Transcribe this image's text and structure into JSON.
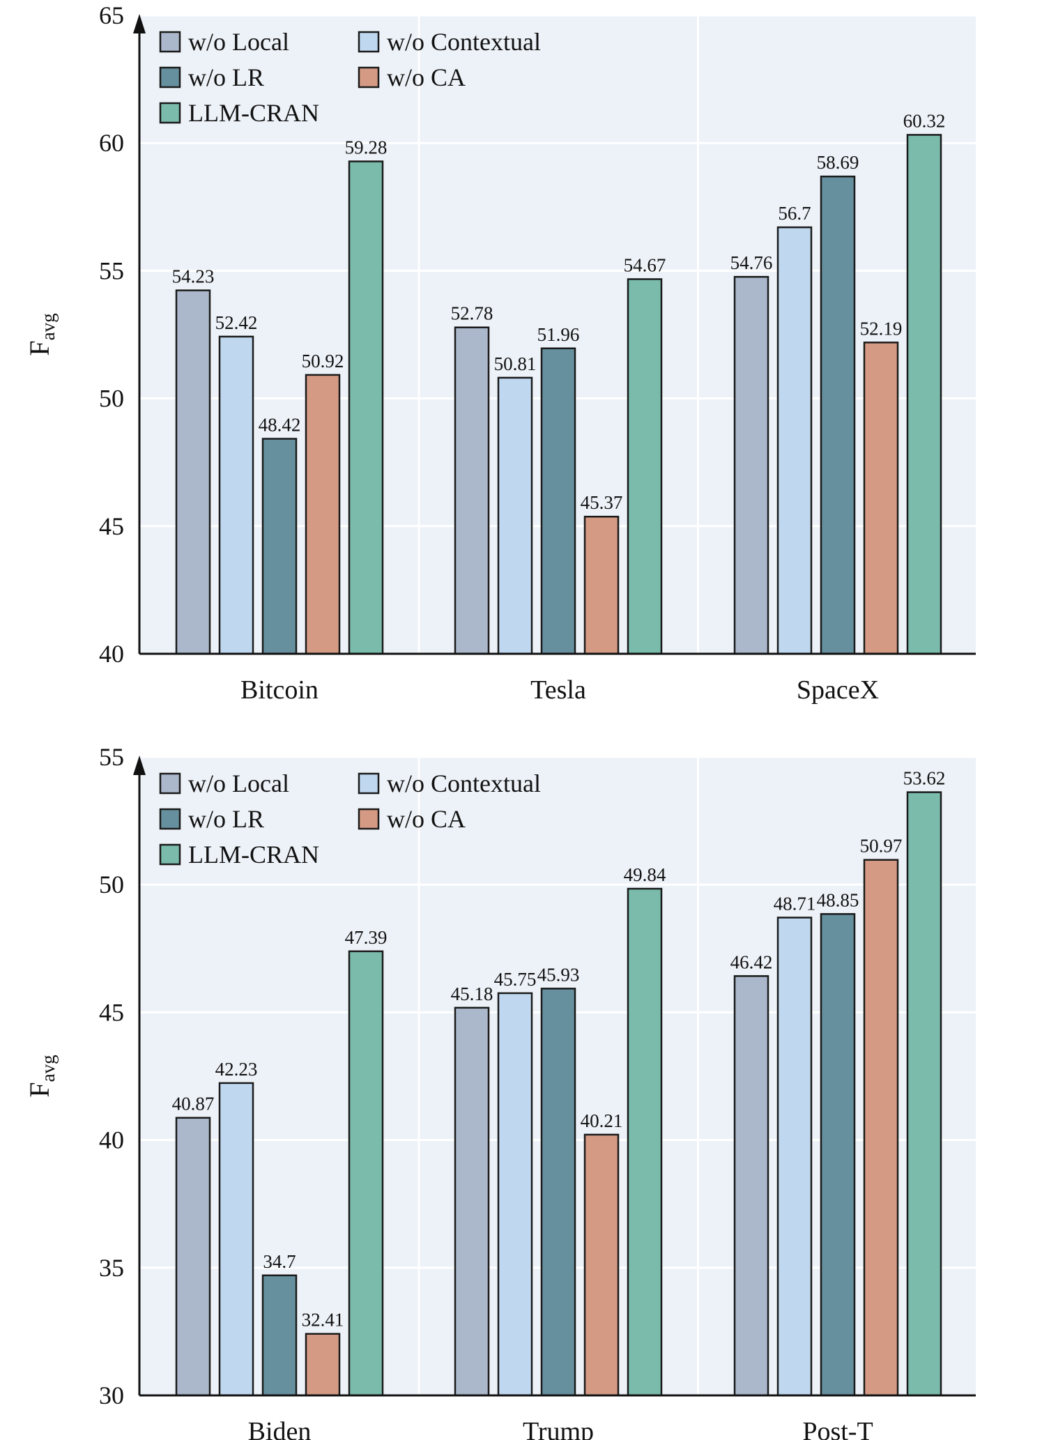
{
  "series_colors": {
    "w/o Local": "#abb8cb",
    "w/o Contextual": "#bfd8ef",
    "w/o LR": "#66909e",
    "w/o CA": "#d49a84",
    "LLM-CRAN": "#7abbab"
  },
  "panel_bg": "#edf2f8",
  "chart_data": [
    {
      "type": "bar",
      "ylabel": "F",
      "ylabel_sub": "avg",
      "ylim": [
        40,
        65
      ],
      "yticks": [
        40,
        45,
        50,
        55,
        60,
        65
      ],
      "grid": true,
      "legend_position": "top-left",
      "categories": [
        "Bitcoin",
        "Tesla",
        "SpaceX"
      ],
      "series": [
        {
          "name": "w/o Local",
          "values": [
            54.23,
            52.78,
            54.76
          ]
        },
        {
          "name": "w/o Contextual",
          "values": [
            52.42,
            50.81,
            56.7
          ]
        },
        {
          "name": "w/o LR",
          "values": [
            48.42,
            51.96,
            58.69
          ]
        },
        {
          "name": "w/o CA",
          "values": [
            50.92,
            45.37,
            52.19
          ]
        },
        {
          "name": "LLM-CRAN",
          "values": [
            59.28,
            54.67,
            60.32
          ]
        }
      ]
    },
    {
      "type": "bar",
      "ylabel": "F",
      "ylabel_sub": "avg",
      "ylim": [
        30,
        55
      ],
      "yticks": [
        30,
        35,
        40,
        45,
        50,
        55
      ],
      "grid": true,
      "legend_position": "top-left",
      "categories": [
        "Biden",
        "Trump",
        "Post-T"
      ],
      "series": [
        {
          "name": "w/o Local",
          "values": [
            40.87,
            45.18,
            46.42
          ]
        },
        {
          "name": "w/o Contextual",
          "values": [
            42.23,
            45.75,
            48.71
          ]
        },
        {
          "name": "w/o LR",
          "values": [
            34.7,
            45.93,
            48.85
          ]
        },
        {
          "name": "w/o CA",
          "values": [
            32.41,
            40.21,
            50.97
          ]
        },
        {
          "name": "LLM-CRAN",
          "values": [
            47.39,
            49.84,
            53.62
          ]
        }
      ]
    }
  ]
}
